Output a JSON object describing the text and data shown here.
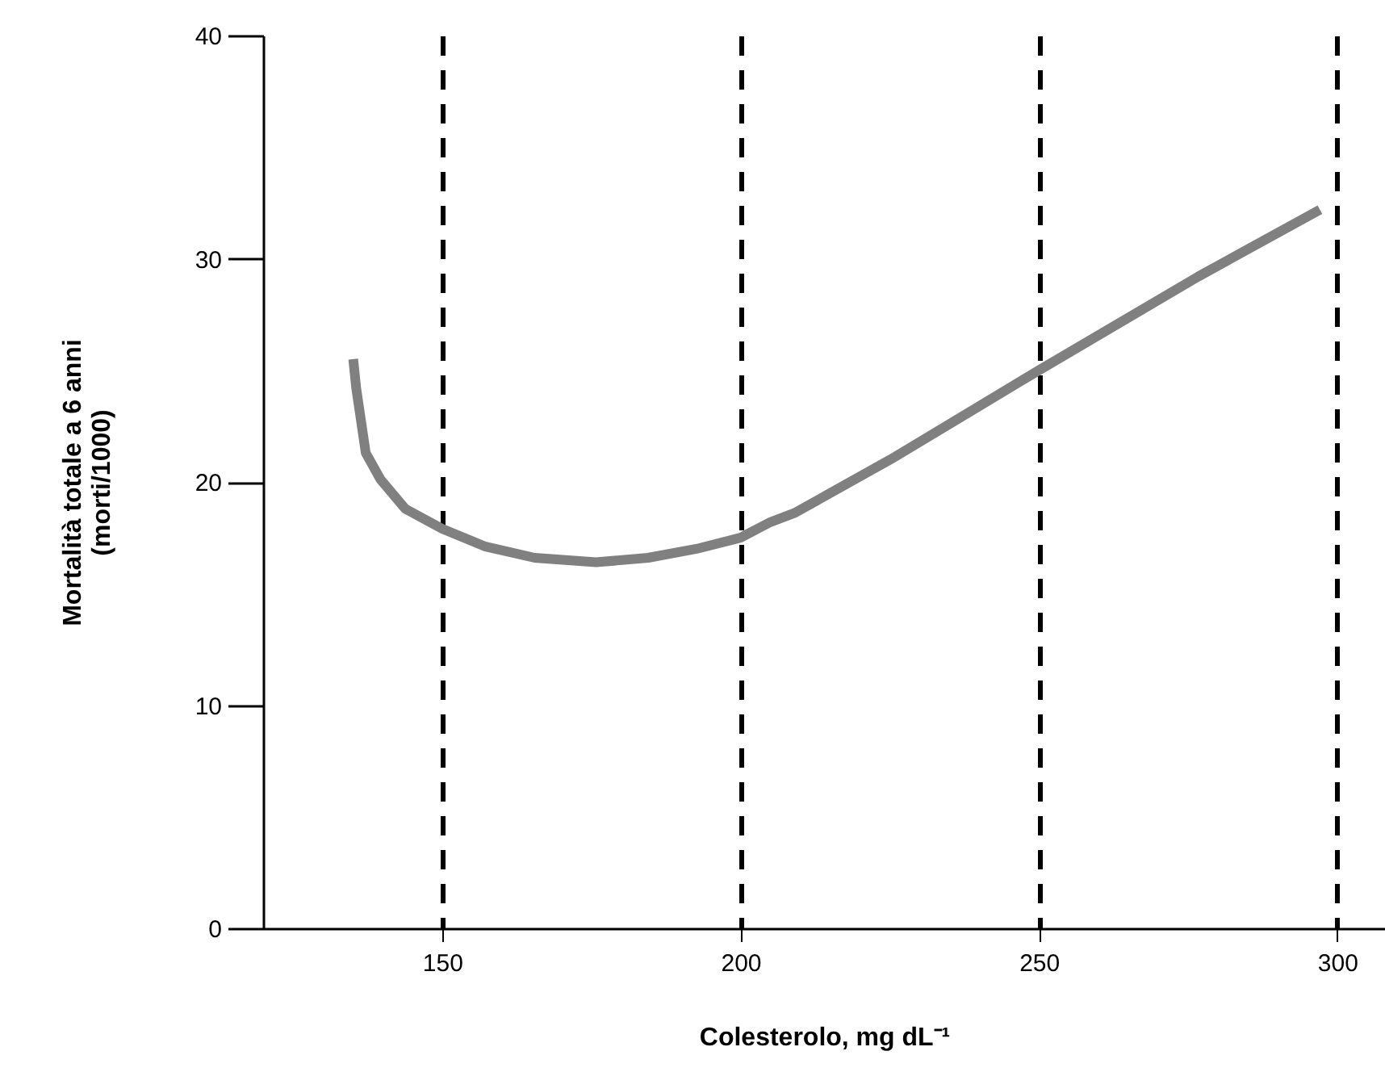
{
  "chart_data": {
    "type": "line",
    "xlabel": "Colesterolo, mg dL⁻¹",
    "ylabel": "Mortalità totale a 6 anni\n(morti/1000)",
    "x": [
      135.1,
      135.6,
      137.2,
      139.7,
      143.8,
      150,
      157.3,
      165.5,
      175.8,
      184.5,
      192.6,
      200,
      205,
      209,
      225.1,
      250,
      276.7,
      297.1
    ],
    "series": [
      {
        "color": "#808080",
        "values": [
          25.5,
          24.2,
          21.3,
          20.1,
          18.8,
          17.9,
          17.1,
          16.6,
          16.4,
          16.6,
          17.0,
          17.5,
          18.2,
          18.6,
          21.0,
          25.0,
          29.2,
          32.2
        ]
      }
    ],
    "xlim": [
      120,
      308
    ],
    "xticks": [
      150,
      200,
      250,
      300
    ],
    "ylim": [
      0,
      40
    ],
    "yticks": [
      0,
      10,
      20,
      30,
      40
    ],
    "grid": "x",
    "marker": "none",
    "line_style": "solid"
  }
}
